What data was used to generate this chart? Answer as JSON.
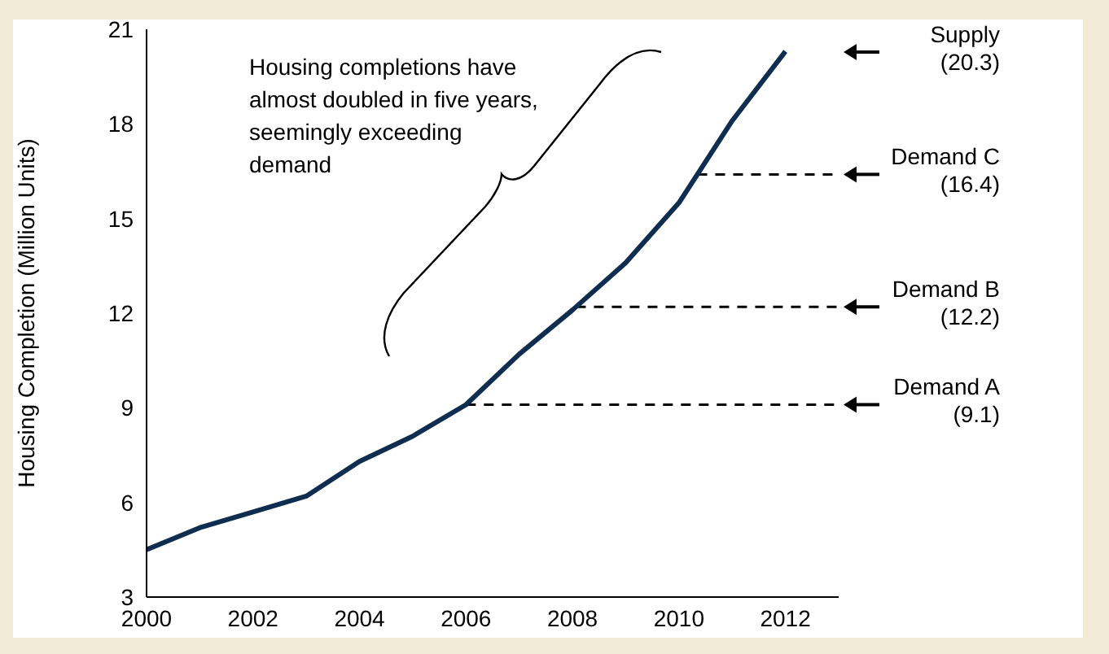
{
  "chart_data": {
    "type": "line",
    "ylabel": "Housing Completion (Million Units)",
    "x": [
      2000,
      2001,
      2002,
      2003,
      2004,
      2005,
      2006,
      2007,
      2008,
      2009,
      2010,
      2011,
      2012
    ],
    "series": [
      {
        "color": "#0f2d4f",
        "values": [
          4.5,
          5.2,
          5.7,
          6.2,
          7.3,
          8.1,
          9.1,
          10.7,
          12.1,
          13.6,
          15.5,
          18.1,
          20.3
        ]
      }
    ],
    "xlim": [
      2000,
      2013
    ],
    "xticks": [
      2000,
      2002,
      2004,
      2006,
      2008,
      2010,
      2012
    ],
    "ylim": [
      3,
      21
    ],
    "yticks": [
      3,
      6,
      9,
      12,
      15,
      18,
      21
    ],
    "grid": false,
    "legend": false,
    "marker": "none",
    "line_style": "solid",
    "ref_lines": [
      {
        "axis": "y",
        "value": 16.4,
        "label": "Demand C\n(16.4)",
        "color": "#000000",
        "line_style": "dashed"
      },
      {
        "axis": "y",
        "value": 12.2,
        "label": "Demand B\n(12.2)",
        "color": "#000000",
        "line_style": "dashed"
      },
      {
        "axis": "y",
        "value": 9.1,
        "label": "Demand A\n(9.1)",
        "color": "#000000",
        "line_style": "dashed"
      }
    ],
    "annotations": [
      "Housing completions have\nalmost doubled in five years,\nseemingly exceeding\ndemand",
      "Supply\n(20.3)"
    ]
  }
}
